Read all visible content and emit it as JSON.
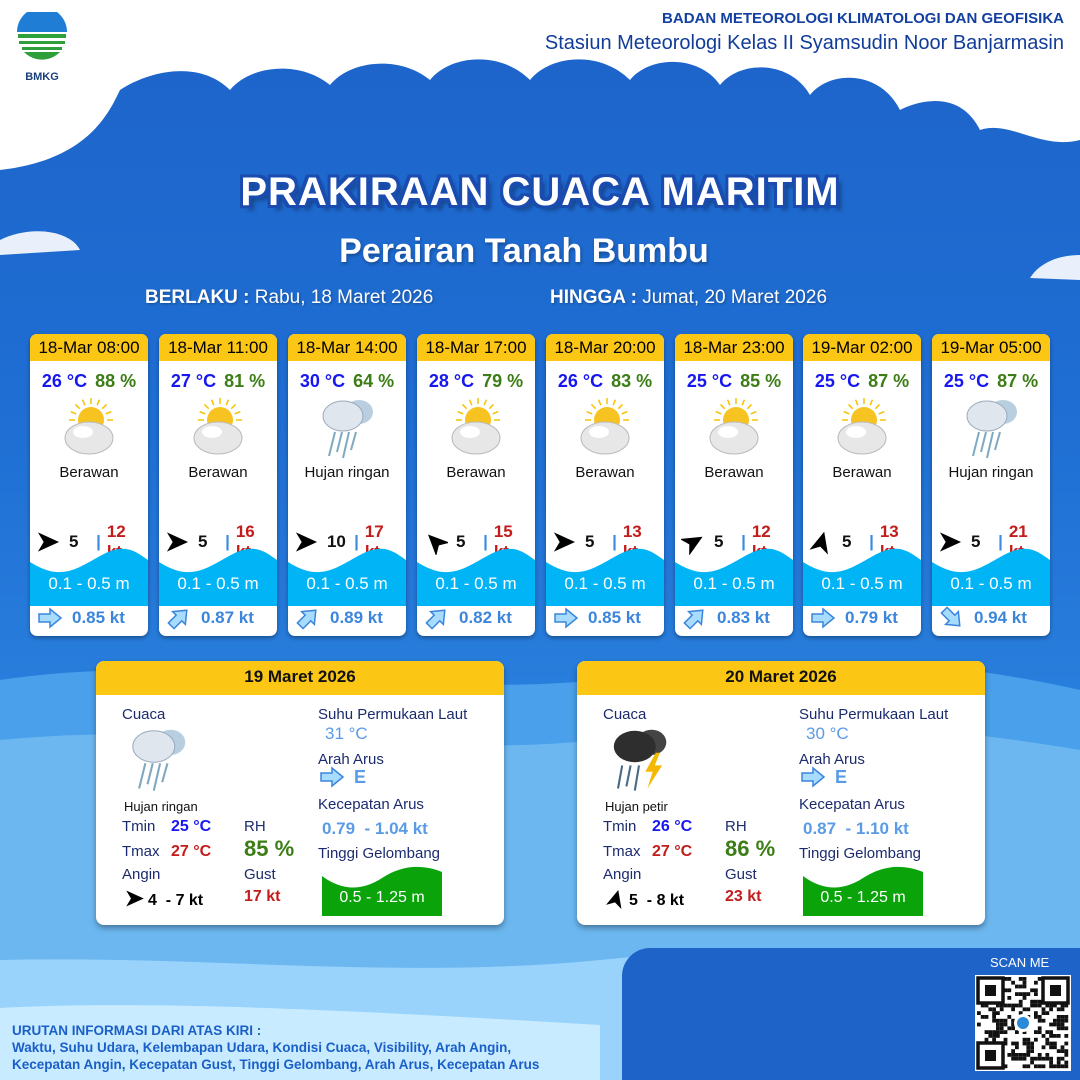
{
  "header": {
    "logo_text": "BMKG",
    "org_line1": "BADAN METEOROLOGI KLIMATOLOGI DAN GEOFISIKA",
    "org_line2": "Stasiun Meteorologi Kelas II Syamsudin Noor Banjarmasin"
  },
  "title": "PRAKIRAAN CUACA MARITIM",
  "subtitle": "Perairan Tanah Bumbu",
  "validity": {
    "from_label": "BERLAKU :",
    "from_value": "Rabu, 18 Maret 2026",
    "to_label": "HINGGA :",
    "to_value": "Jumat, 20 Maret 2026"
  },
  "colors": {
    "header_yellow": "#fcc614",
    "temp_blue": "#1717f0",
    "rh_green": "#3c7d16",
    "gust_red": "#c41b1b",
    "wave_cyan": "#00b4f5",
    "wave_green": "#0aa30a"
  },
  "forecasts": [
    {
      "time": "18-Mar 08:00",
      "temp": "26 °C",
      "rh": "88 %",
      "icon": "partly-cloudy-icon",
      "condition": "Berawan",
      "wind_dir_deg": 90,
      "wind_speed": "5",
      "gust": "12 kt",
      "wave": "0.1 - 0.5 m",
      "current_dir_deg": 90,
      "current_speed": "0.85 kt"
    },
    {
      "time": "18-Mar 11:00",
      "temp": "27 °C",
      "rh": "81 %",
      "icon": "partly-cloudy-icon",
      "condition": "Berawan",
      "wind_dir_deg": 90,
      "wind_speed": "5",
      "gust": "16 kt",
      "wave": "0.1 - 0.5 m",
      "current_dir_deg": 45,
      "current_speed": "0.87 kt"
    },
    {
      "time": "18-Mar 14:00",
      "temp": "30 °C",
      "rh": "64 %",
      "icon": "light-rain-icon",
      "condition": "Hujan ringan",
      "wind_dir_deg": 90,
      "wind_speed": "10",
      "gust": "17 kt",
      "wave": "0.1 - 0.5 m",
      "current_dir_deg": 45,
      "current_speed": "0.89 kt"
    },
    {
      "time": "18-Mar 17:00",
      "temp": "28 °C",
      "rh": "79 %",
      "icon": "partly-cloudy-icon",
      "condition": "Berawan",
      "wind_dir_deg": 315,
      "wind_speed": "5",
      "gust": "15 kt",
      "wave": "0.1 - 0.5 m",
      "current_dir_deg": 45,
      "current_speed": "0.82 kt"
    },
    {
      "time": "18-Mar 20:00",
      "temp": "26 °C",
      "rh": "83 %",
      "icon": "partly-cloudy-icon",
      "condition": "Berawan",
      "wind_dir_deg": 90,
      "wind_speed": "5",
      "gust": "13 kt",
      "wave": "0.1 - 0.5 m",
      "current_dir_deg": 90,
      "current_speed": "0.85 kt"
    },
    {
      "time": "18-Mar 23:00",
      "temp": "25 °C",
      "rh": "85 %",
      "icon": "partly-cloudy-icon",
      "condition": "Berawan",
      "wind_dir_deg": 60,
      "wind_speed": "5",
      "gust": "12 kt",
      "wave": "0.1 - 0.5 m",
      "current_dir_deg": 45,
      "current_speed": "0.83 kt"
    },
    {
      "time": "19-Mar 02:00",
      "temp": "25 °C",
      "rh": "87 %",
      "icon": "partly-cloudy-icon",
      "condition": "Berawan",
      "wind_dir_deg": 15,
      "wind_speed": "5",
      "gust": "13 kt",
      "wave": "0.1 - 0.5 m",
      "current_dir_deg": 90,
      "current_speed": "0.79 kt"
    },
    {
      "time": "19-Mar 05:00",
      "temp": "25 °C",
      "rh": "87 %",
      "icon": "light-rain-icon",
      "condition": "Hujan ringan",
      "wind_dir_deg": 90,
      "wind_speed": "5",
      "gust": "21 kt",
      "wave": "0.1 - 0.5 m",
      "current_dir_deg": 135,
      "current_speed": "0.94 kt"
    }
  ],
  "labels": {
    "weather": "Cuaca",
    "tmin": "Tmin",
    "tmax": "Tmax",
    "rh": "RH",
    "wind": "Angin",
    "gust": "Gust",
    "sst": "Suhu Permukaan Laut",
    "current_dir": "Arah Arus",
    "current_speed": "Kecepatan Arus",
    "wave": "Tinggi Gelombang"
  },
  "daily": [
    {
      "date": "19 Maret 2026",
      "icon": "light-rain-icon",
      "condition": "Hujan ringan",
      "tmin": "25 °C",
      "tmax": "27 °C",
      "rh": "85 %",
      "wind_dir_deg": 90,
      "wind": "4  - 7 kt",
      "gust": "17 kt",
      "sst": "31 °C",
      "current_dir": "E",
      "current_dir_deg": 90,
      "current_speed": "0.79  - 1.04 kt",
      "wave": "0.5 - 1.25 m"
    },
    {
      "date": "20 Maret 2026",
      "icon": "thunderstorm-icon",
      "condition": "Hujan petir",
      "tmin": "26 °C",
      "tmax": "27 °C",
      "rh": "86 %",
      "wind_dir_deg": 15,
      "wind": "5  - 8 kt",
      "gust": "23 kt",
      "sst": "30 °C",
      "current_dir": "E",
      "current_dir_deg": 90,
      "current_speed": "0.87  - 1.10 kt",
      "wave": "0.5 - 1.25 m"
    }
  ],
  "qr": {
    "label": "SCAN ME"
  },
  "footer": {
    "heading": "URUTAN INFORMASI DARI ATAS KIRI :",
    "line1": "Waktu, Suhu Udara, Kelembapan Udara, Kondisi Cuaca, Visibility, Arah Angin,",
    "line2": "Kecepatan Angin, Kecepatan Gust, Tinggi Gelombang, Arah Arus, Kecepatan Arus"
  }
}
